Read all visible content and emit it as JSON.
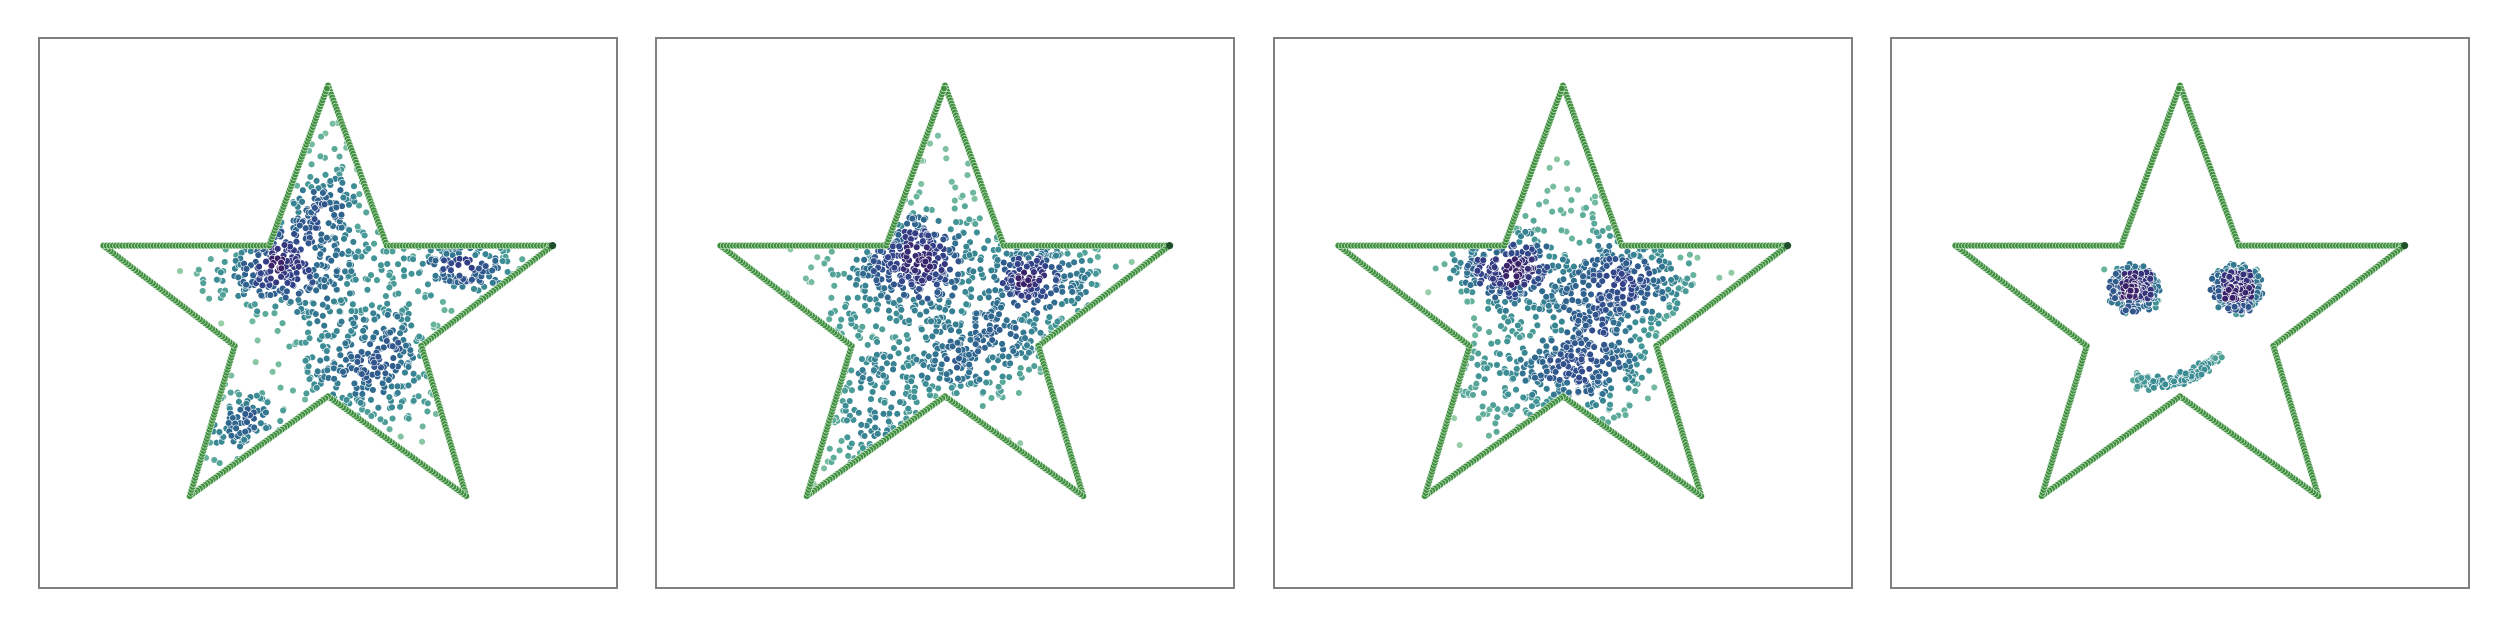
{
  "figure": {
    "panel_count": 4,
    "frame_color": "#808080",
    "background": "#ffffff"
  },
  "chart_data": [
    {
      "type": "scatter",
      "panel": 1,
      "axes_visible": false,
      "grid": false,
      "xlim": [
        0,
        1
      ],
      "ylim": [
        0,
        1
      ],
      "outline_color": "#3f8f3f",
      "point_colormap": [
        "#9fd3a8",
        "#5fae9b",
        "#3d8f95",
        "#2f6c8f",
        "#32438a",
        "#3a2168"
      ],
      "star_vertices": [
        [
          0.5,
          0.915
        ],
        [
          0.602,
          0.623
        ],
        [
          0.89,
          0.623
        ],
        [
          0.662,
          0.44
        ],
        [
          0.74,
          0.166
        ],
        [
          0.5,
          0.348
        ],
        [
          0.26,
          0.166
        ],
        [
          0.338,
          0.44
        ],
        [
          0.11,
          0.623
        ],
        [
          0.398,
          0.623
        ]
      ],
      "clusters": [
        {
          "x": 0.42,
          "y": 0.6,
          "sx": 0.07,
          "sy": 0.05,
          "n": 260,
          "rot": 0.3
        },
        {
          "x": 0.58,
          "y": 0.41,
          "sx": 0.07,
          "sy": 0.07,
          "n": 240,
          "rot": 0.0
        },
        {
          "x": 0.74,
          "y": 0.59,
          "sx": 0.06,
          "sy": 0.03,
          "n": 130,
          "rot": 0.0
        },
        {
          "x": 0.5,
          "y": 0.68,
          "sx": 0.035,
          "sy": 0.09,
          "n": 110,
          "rot": 0.0
        },
        {
          "x": 0.35,
          "y": 0.29,
          "sx": 0.045,
          "sy": 0.04,
          "n": 90,
          "rot": 0.0
        },
        {
          "x": 0.53,
          "y": 0.52,
          "sx": 0.09,
          "sy": 0.12,
          "n": 150,
          "rot": 0.0
        }
      ]
    },
    {
      "type": "scatter",
      "panel": 2,
      "axes_visible": false,
      "grid": false,
      "xlim": [
        0,
        1
      ],
      "ylim": [
        0,
        1
      ],
      "outline_color": "#3f8f3f",
      "point_colormap": [
        "#9fd3a8",
        "#5fae9b",
        "#3d8f95",
        "#2f6c8f",
        "#32438a",
        "#3a2168"
      ],
      "star_vertices": [
        [
          0.5,
          0.915
        ],
        [
          0.602,
          0.623
        ],
        [
          0.89,
          0.623
        ],
        [
          0.662,
          0.44
        ],
        [
          0.74,
          0.166
        ],
        [
          0.5,
          0.348
        ],
        [
          0.26,
          0.166
        ],
        [
          0.338,
          0.44
        ],
        [
          0.11,
          0.623
        ],
        [
          0.398,
          0.623
        ]
      ],
      "clusters": [
        {
          "x": 0.42,
          "y": 0.59,
          "sx": 0.065,
          "sy": 0.045,
          "n": 240,
          "rot": 0.3
        },
        {
          "x": 0.68,
          "y": 0.57,
          "sx": 0.06,
          "sy": 0.04,
          "n": 170,
          "rot": 0.0
        },
        {
          "x": 0.58,
          "y": 0.44,
          "sx": 0.06,
          "sy": 0.05,
          "n": 160,
          "rot": 0.0
        },
        {
          "x": 0.38,
          "y": 0.33,
          "sx": 0.08,
          "sy": 0.07,
          "n": 170,
          "rot": 0.6
        },
        {
          "x": 0.52,
          "y": 0.55,
          "sx": 0.12,
          "sy": 0.14,
          "n": 330,
          "rot": 0.0
        }
      ]
    },
    {
      "type": "scatter",
      "panel": 3,
      "axes_visible": false,
      "grid": false,
      "xlim": [
        0,
        1
      ],
      "ylim": [
        0,
        1
      ],
      "outline_color": "#3f8f3f",
      "point_colormap": [
        "#9fd3a8",
        "#5fae9b",
        "#3d8f95",
        "#2f6c8f",
        "#32438a",
        "#3a2168"
      ],
      "star_vertices": [
        [
          0.5,
          0.915
        ],
        [
          0.602,
          0.623
        ],
        [
          0.89,
          0.623
        ],
        [
          0.662,
          0.44
        ],
        [
          0.74,
          0.166
        ],
        [
          0.5,
          0.348
        ],
        [
          0.26,
          0.166
        ],
        [
          0.338,
          0.44
        ],
        [
          0.11,
          0.623
        ],
        [
          0.398,
          0.623
        ]
      ],
      "clusters": [
        {
          "x": 0.4,
          "y": 0.58,
          "sx": 0.045,
          "sy": 0.035,
          "n": 190,
          "rot": 0.0
        },
        {
          "x": 0.62,
          "y": 0.56,
          "sx": 0.055,
          "sy": 0.045,
          "n": 180,
          "rot": 0.0
        },
        {
          "x": 0.54,
          "y": 0.41,
          "sx": 0.06,
          "sy": 0.05,
          "n": 170,
          "rot": 0.0
        },
        {
          "x": 0.44,
          "y": 0.37,
          "sx": 0.08,
          "sy": 0.06,
          "n": 180,
          "rot": 0.0
        },
        {
          "x": 0.52,
          "y": 0.56,
          "sx": 0.11,
          "sy": 0.1,
          "n": 300,
          "rot": 0.0
        }
      ]
    },
    {
      "type": "scatter",
      "panel": 4,
      "axes_visible": false,
      "grid": false,
      "xlim": [
        0,
        1
      ],
      "ylim": [
        0,
        1
      ],
      "outline_color": "#3f8f3f",
      "point_colormap": [
        "#9fd3a8",
        "#5fae9b",
        "#3d8f95",
        "#2f6c8f",
        "#32438a",
        "#3a2168"
      ],
      "star_vertices": [
        [
          0.5,
          0.915
        ],
        [
          0.602,
          0.623
        ],
        [
          0.89,
          0.623
        ],
        [
          0.662,
          0.44
        ],
        [
          0.74,
          0.166
        ],
        [
          0.5,
          0.348
        ],
        [
          0.26,
          0.166
        ],
        [
          0.338,
          0.44
        ],
        [
          0.11,
          0.623
        ],
        [
          0.398,
          0.623
        ]
      ],
      "clusters": [
        {
          "x": 0.42,
          "y": 0.545,
          "sx": 0.018,
          "sy": 0.016,
          "n": 160,
          "rot": 0.0
        },
        {
          "x": 0.6,
          "y": 0.545,
          "sx": 0.018,
          "sy": 0.016,
          "n": 160,
          "rot": 0.0
        }
      ],
      "rings": [
        {
          "x": 0.42,
          "y": 0.545,
          "r": 0.038,
          "n": 120
        },
        {
          "x": 0.6,
          "y": 0.545,
          "r": 0.038,
          "n": 120
        }
      ],
      "smile": {
        "x0": 0.42,
        "x1": 0.57,
        "y_mid": 0.4,
        "depth": 0.025,
        "n": 150
      }
    }
  ]
}
